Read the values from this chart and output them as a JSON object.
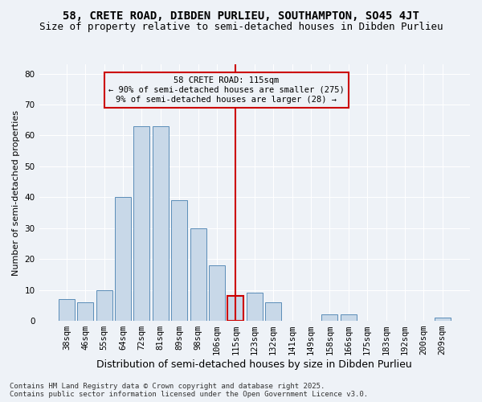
{
  "title1": "58, CRETE ROAD, DIBDEN PURLIEU, SOUTHAMPTON, SO45 4JT",
  "title2": "Size of property relative to semi-detached houses in Dibden Purlieu",
  "xlabel": "Distribution of semi-detached houses by size in Dibden Purlieu",
  "ylabel": "Number of semi-detached properties",
  "categories": [
    "38sqm",
    "46sqm",
    "55sqm",
    "64sqm",
    "72sqm",
    "81sqm",
    "89sqm",
    "98sqm",
    "106sqm",
    "115sqm",
    "123sqm",
    "132sqm",
    "141sqm",
    "149sqm",
    "158sqm",
    "166sqm",
    "175sqm",
    "183sqm",
    "192sqm",
    "200sqm",
    "209sqm"
  ],
  "values": [
    7,
    6,
    10,
    40,
    63,
    63,
    39,
    30,
    18,
    8,
    9,
    6,
    0,
    0,
    2,
    2,
    0,
    0,
    0,
    0,
    1
  ],
  "bar_color": "#c8d8e8",
  "bar_edge_color": "#5b8db8",
  "highlight_index": 9,
  "highlight_line_color": "#cc0000",
  "annotation_text": "58 CRETE ROAD: 115sqm\n← 90% of semi-detached houses are smaller (275)\n9% of semi-detached houses are larger (28) →",
  "ylim": [
    0,
    83
  ],
  "yticks": [
    0,
    10,
    20,
    30,
    40,
    50,
    60,
    70,
    80
  ],
  "footer_text": "Contains HM Land Registry data © Crown copyright and database right 2025.\nContains public sector information licensed under the Open Government Licence v3.0.",
  "bg_color": "#eef2f7",
  "grid_color": "#ffffff",
  "title1_fontsize": 10,
  "title2_fontsize": 9,
  "xlabel_fontsize": 9,
  "ylabel_fontsize": 8,
  "tick_fontsize": 7.5,
  "footer_fontsize": 6.5
}
